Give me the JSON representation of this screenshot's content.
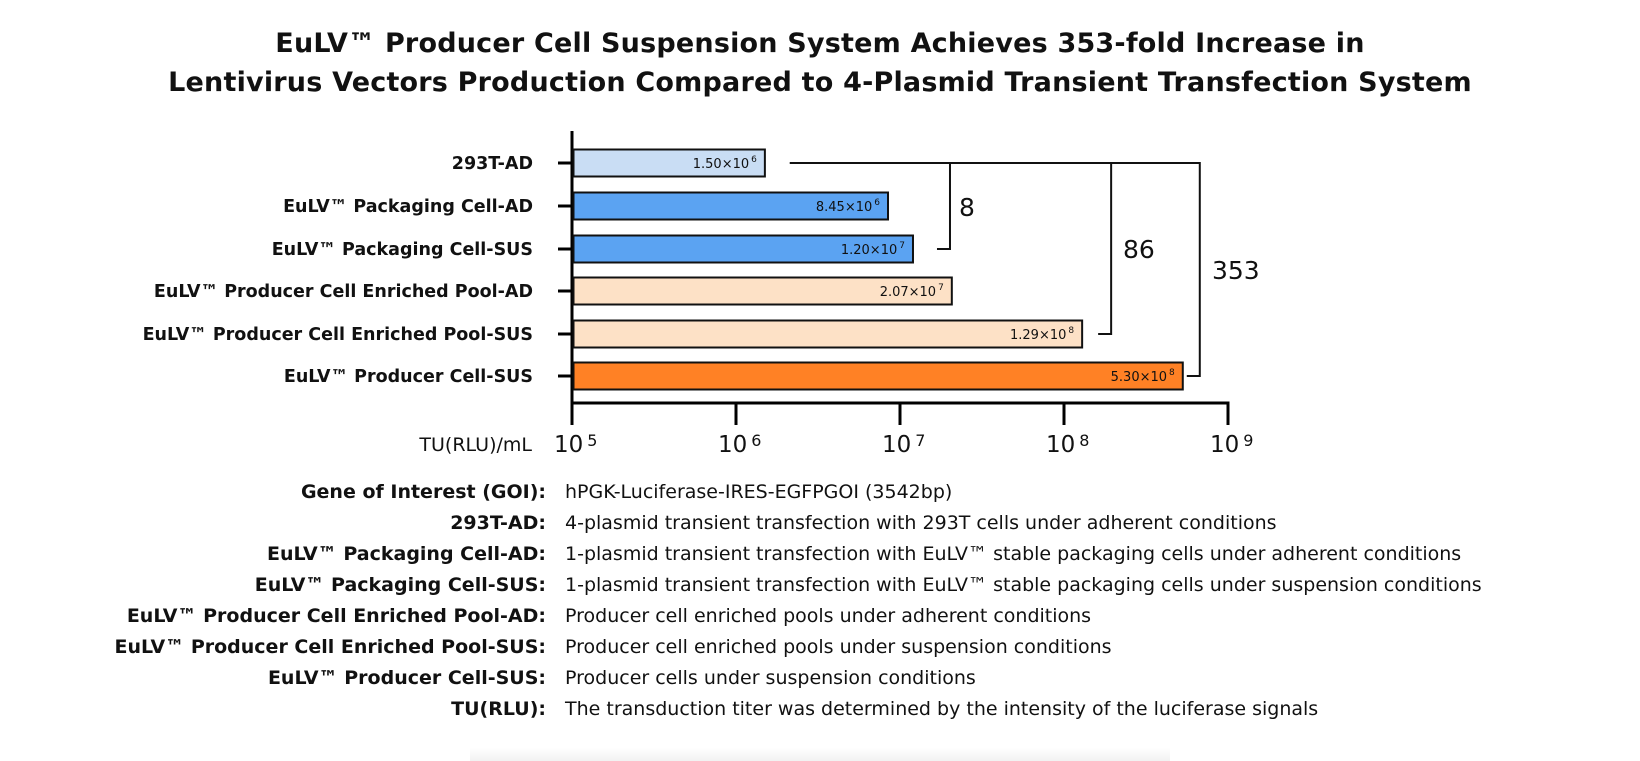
{
  "title": {
    "line1": "EuLV™ Producer Cell Suspension System Achieves 353-fold Increase in",
    "line2": "Lentivirus Vectors Production Compared to 4-Plasmid Transient Transfection System"
  },
  "chart_data": {
    "type": "bar",
    "orientation": "horizontal",
    "x_scale": "log",
    "xlim": [
      100000,
      1000000000
    ],
    "xlabel": "TU(RLU)/mL",
    "x_ticks": [
      {
        "base": "10",
        "exp": "5"
      },
      {
        "base": "10",
        "exp": "6"
      },
      {
        "base": "10",
        "exp": "7"
      },
      {
        "base": "10",
        "exp": "8"
      },
      {
        "base": "10",
        "exp": "9"
      }
    ],
    "categories": [
      "293T-AD",
      "EuLV™ Packaging Cell-AD",
      "EuLV™ Packaging Cell-SUS",
      "EuLV™ Producer Cell Enriched Pool-AD",
      "EuLV™ Producer Cell Enriched Pool-SUS",
      "EuLV™ Producer Cell-SUS"
    ],
    "values": [
      1500000,
      8450000,
      12000000,
      20700000,
      129000000,
      530000000
    ],
    "value_labels": [
      {
        "mantissa": "1.50×10",
        "exp": "6"
      },
      {
        "mantissa": "8.45×10",
        "exp": "6"
      },
      {
        "mantissa": "1.20×10",
        "exp": "7"
      },
      {
        "mantissa": "2.07×10",
        "exp": "7"
      },
      {
        "mantissa": "1.29×10",
        "exp": "8"
      },
      {
        "mantissa": "5.30×10",
        "exp": "8"
      }
    ],
    "colors": [
      "#c9ddf4",
      "#5ba3f2",
      "#5ba3f2",
      "#fde1c6",
      "#fde1c6",
      "#ff8125"
    ],
    "fold_changes": [
      {
        "label": "8",
        "from": 0,
        "to": 2
      },
      {
        "label": "86",
        "from": 0,
        "to": 4
      },
      {
        "label": "353",
        "from": 0,
        "to": 5
      }
    ]
  },
  "legend": [
    {
      "term": "Gene of Interest (GOI):",
      "definition": "hPGK-Luciferase-IRES-EGFPGOI (3542bp)"
    },
    {
      "term": "293T-AD:",
      "definition": "4-plasmid transient transfection with 293T cells under adherent conditions"
    },
    {
      "term": "EuLV™ Packaging Cell-AD:",
      "definition": "1-plasmid transient transfection with EuLV™ stable packaging cells under adherent conditions"
    },
    {
      "term": "EuLV™ Packaging Cell-SUS:",
      "definition": "1-plasmid transient transfection with EuLV™ stable packaging cells under suspension conditions"
    },
    {
      "term": "EuLV™ Producer Cell Enriched Pool-AD:",
      "definition": "Producer cell enriched pools under adherent conditions"
    },
    {
      "term": "EuLV™ Producer Cell Enriched Pool-SUS:",
      "definition": "Producer cell enriched pools under suspension conditions"
    },
    {
      "term": "EuLV™ Producer Cell-SUS:",
      "definition": "Producer cells under suspension conditions"
    },
    {
      "term": "TU(RLU):",
      "definition": "The transduction titer was determined by the intensity of the luciferase signals"
    }
  ]
}
